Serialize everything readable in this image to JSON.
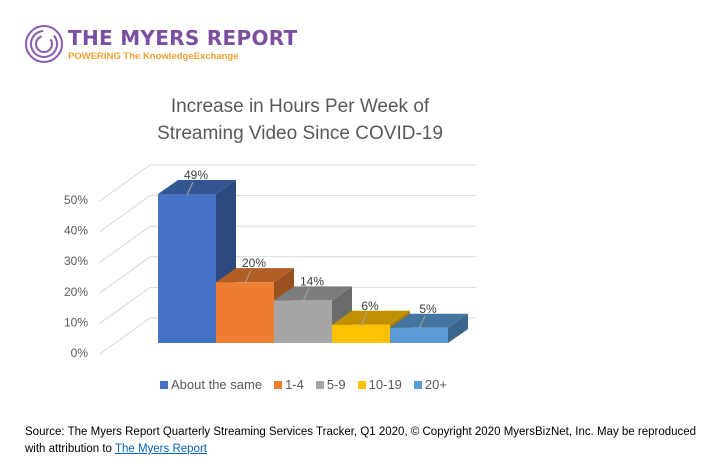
{
  "logo": {
    "title": "THE MYERS REPORT",
    "tagline": "POWERING The KnowledgeExchange"
  },
  "chart_data": {
    "type": "bar",
    "title": "Increase in Hours Per Week of Streaming Video Since COVID-19",
    "title_lines": [
      "Increase in Hours Per Week of",
      "Streaming Video Since COVID-19"
    ],
    "categories": [
      "About the same",
      "1-4",
      "5-9",
      "10-19",
      "20+"
    ],
    "values": [
      49,
      20,
      14,
      6,
      5
    ],
    "data_labels": [
      "49%",
      "20%",
      "14%",
      "6%",
      "5%"
    ],
    "colors": [
      "#4472c4",
      "#ed7d31",
      "#a5a5a5",
      "#ffc000",
      "#5b9bd5"
    ],
    "ylim": [
      0,
      50
    ],
    "yticks": [
      "0%",
      "10%",
      "20%",
      "30%",
      "40%",
      "50%"
    ],
    "xlabel": "",
    "ylabel": "",
    "grid": true,
    "legend_position": "bottom",
    "style": "3d-column"
  },
  "source": {
    "text": "Source: The Myers Report Quarterly Streaming Services Tracker, Q1 2020, © Copyright 2020 MyersBizNet, Inc. May be reproduced with attribution to ",
    "link": "The Myers Report"
  }
}
